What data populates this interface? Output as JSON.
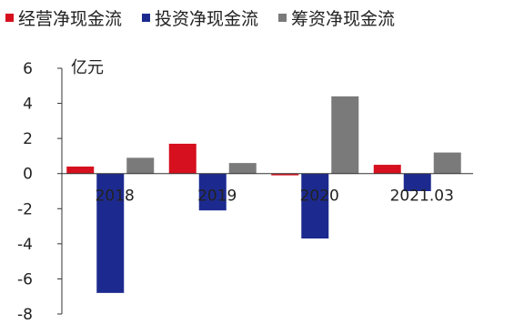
{
  "chart_data": {
    "type": "bar",
    "unit_label": "亿元",
    "categories": [
      "2018",
      "2019",
      "2020",
      "2021.03"
    ],
    "series": [
      {
        "name": "经营净现金流",
        "color": "#d6101e",
        "values": [
          0.4,
          1.7,
          -0.1,
          0.5
        ]
      },
      {
        "name": "投资净现金流",
        "color": "#1c2a8f",
        "values": [
          -6.8,
          -2.1,
          -3.7,
          -1.0
        ]
      },
      {
        "name": "筹资净现金流",
        "color": "#7a7a7a",
        "values": [
          0.9,
          0.6,
          4.4,
          1.2
        ]
      }
    ],
    "ylim": [
      -8,
      6
    ],
    "yticks": [
      "6",
      "4",
      "2",
      "0",
      "-2",
      "-4",
      "-6",
      "-8"
    ],
    "legend_position": "top",
    "grid": false
  }
}
